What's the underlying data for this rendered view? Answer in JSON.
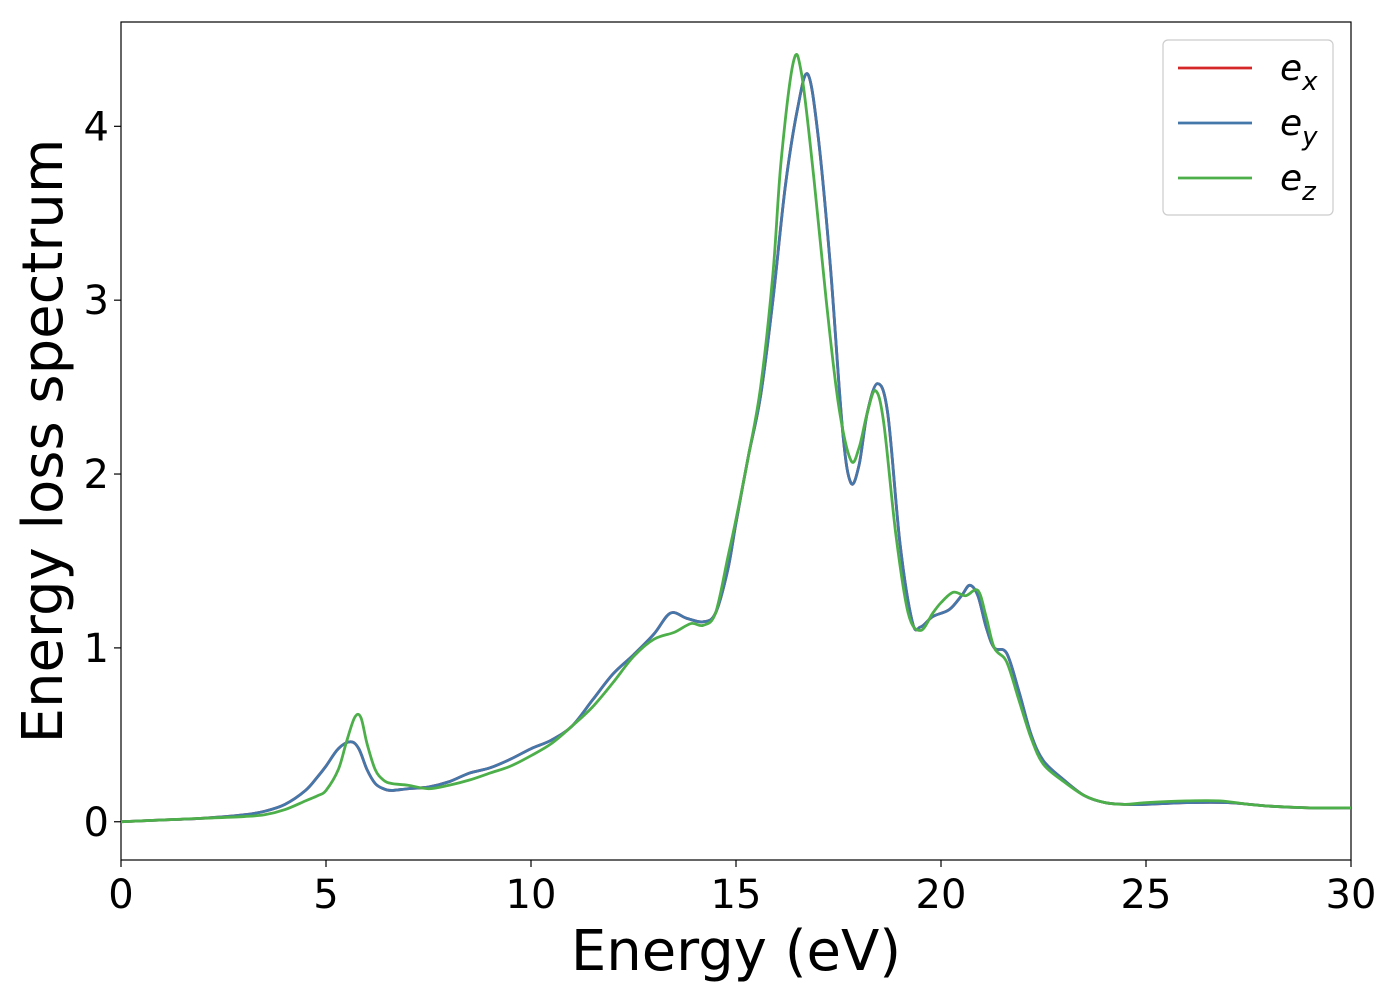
{
  "chart_data": {
    "type": "line",
    "title": "",
    "xlabel": "Energy (eV)",
    "ylabel": "Energy loss spectrum",
    "xlim": [
      0,
      30
    ],
    "ylim": [
      -0.22,
      4.6
    ],
    "xticks": [
      0,
      5,
      10,
      15,
      20,
      25,
      30
    ],
    "yticks": [
      0,
      1,
      2,
      3,
      4
    ],
    "grid": false,
    "legend_position": "top-right",
    "series": [
      {
        "name": "e_x",
        "label_base": "e",
        "label_sub": "x",
        "color": "#d62728",
        "x": [
          0,
          1,
          2,
          3,
          3.5,
          4,
          4.5,
          4.8,
          5,
          5.3,
          5.6,
          5.8,
          6,
          6.2,
          6.4,
          6.6,
          7,
          7.5,
          8,
          8.5,
          9,
          9.5,
          10,
          10.5,
          11,
          11.5,
          12,
          12.5,
          13,
          13.4,
          13.8,
          14.2,
          14.5,
          14.8,
          15,
          15.3,
          15.6,
          15.9,
          16.2,
          16.5,
          16.75,
          17,
          17.3,
          17.6,
          17.8,
          18,
          18.2,
          18.45,
          18.7,
          19,
          19.3,
          19.5,
          19.8,
          20.2,
          20.5,
          20.7,
          20.9,
          21.1,
          21.3,
          21.6,
          21.9,
          22.2,
          22.5,
          23,
          23.5,
          24,
          24.5,
          25,
          26,
          27,
          28,
          29,
          30
        ],
        "y": [
          0,
          0.01,
          0.02,
          0.04,
          0.06,
          0.1,
          0.18,
          0.26,
          0.32,
          0.42,
          0.46,
          0.42,
          0.3,
          0.22,
          0.19,
          0.18,
          0.19,
          0.2,
          0.23,
          0.28,
          0.31,
          0.36,
          0.42,
          0.47,
          0.55,
          0.7,
          0.85,
          0.96,
          1.08,
          1.2,
          1.17,
          1.15,
          1.2,
          1.45,
          1.72,
          2.1,
          2.45,
          3.0,
          3.65,
          4.1,
          4.3,
          3.95,
          3.2,
          2.25,
          1.95,
          2.05,
          2.35,
          2.52,
          2.35,
          1.6,
          1.15,
          1.12,
          1.18,
          1.22,
          1.3,
          1.36,
          1.3,
          1.12,
          1.0,
          0.97,
          0.75,
          0.5,
          0.35,
          0.24,
          0.15,
          0.11,
          0.1,
          0.1,
          0.11,
          0.11,
          0.09,
          0.08,
          0.08
        ]
      },
      {
        "name": "e_y",
        "label_base": "e",
        "label_sub": "y",
        "color": "#4477aa",
        "x": [
          0,
          1,
          2,
          3,
          3.5,
          4,
          4.5,
          4.8,
          5,
          5.3,
          5.6,
          5.8,
          6,
          6.2,
          6.4,
          6.6,
          7,
          7.5,
          8,
          8.5,
          9,
          9.5,
          10,
          10.5,
          11,
          11.5,
          12,
          12.5,
          13,
          13.4,
          13.8,
          14.2,
          14.5,
          14.8,
          15,
          15.3,
          15.6,
          15.9,
          16.2,
          16.5,
          16.75,
          17,
          17.3,
          17.6,
          17.8,
          18,
          18.2,
          18.45,
          18.7,
          19,
          19.3,
          19.5,
          19.8,
          20.2,
          20.5,
          20.7,
          20.9,
          21.1,
          21.3,
          21.6,
          21.9,
          22.2,
          22.5,
          23,
          23.5,
          24,
          24.5,
          25,
          26,
          27,
          28,
          29,
          30
        ],
        "y": [
          0,
          0.01,
          0.02,
          0.04,
          0.06,
          0.1,
          0.18,
          0.26,
          0.32,
          0.42,
          0.46,
          0.42,
          0.3,
          0.22,
          0.19,
          0.18,
          0.19,
          0.2,
          0.23,
          0.28,
          0.31,
          0.36,
          0.42,
          0.47,
          0.55,
          0.7,
          0.85,
          0.96,
          1.08,
          1.2,
          1.17,
          1.15,
          1.2,
          1.45,
          1.72,
          2.1,
          2.45,
          3.0,
          3.65,
          4.1,
          4.3,
          3.95,
          3.2,
          2.25,
          1.95,
          2.05,
          2.35,
          2.52,
          2.35,
          1.6,
          1.15,
          1.12,
          1.18,
          1.22,
          1.3,
          1.36,
          1.3,
          1.12,
          1.0,
          0.97,
          0.75,
          0.5,
          0.35,
          0.24,
          0.15,
          0.11,
          0.1,
          0.1,
          0.11,
          0.11,
          0.09,
          0.08,
          0.08
        ]
      },
      {
        "name": "e_z",
        "label_base": "e",
        "label_sub": "z",
        "color": "#4daf4a",
        "x": [
          0,
          1,
          2,
          3,
          3.5,
          4,
          4.5,
          4.8,
          5,
          5.3,
          5.5,
          5.7,
          5.85,
          6,
          6.2,
          6.4,
          6.6,
          7,
          7.5,
          8,
          8.5,
          9,
          9.5,
          10,
          10.5,
          11,
          11.5,
          12,
          12.5,
          13,
          13.5,
          13.9,
          14.2,
          14.5,
          14.8,
          15,
          15.3,
          15.6,
          15.9,
          16.1,
          16.4,
          16.6,
          16.9,
          17.2,
          17.5,
          17.8,
          18,
          18.2,
          18.4,
          18.6,
          18.9,
          19.2,
          19.5,
          19.8,
          20,
          20.3,
          20.6,
          20.9,
          21.1,
          21.3,
          21.6,
          21.9,
          22.2,
          22.5,
          23,
          23.5,
          24,
          24.5,
          25,
          26,
          26.8,
          27.5,
          28,
          29,
          30
        ],
        "y": [
          0,
          0.01,
          0.02,
          0.03,
          0.04,
          0.07,
          0.12,
          0.15,
          0.18,
          0.3,
          0.46,
          0.6,
          0.6,
          0.45,
          0.3,
          0.24,
          0.22,
          0.21,
          0.19,
          0.21,
          0.24,
          0.28,
          0.32,
          0.38,
          0.45,
          0.55,
          0.66,
          0.8,
          0.95,
          1.05,
          1.09,
          1.14,
          1.13,
          1.2,
          1.52,
          1.74,
          2.1,
          2.5,
          3.15,
          3.8,
          4.37,
          4.3,
          3.7,
          3.0,
          2.4,
          2.08,
          2.15,
          2.35,
          2.48,
          2.3,
          1.65,
          1.2,
          1.1,
          1.2,
          1.26,
          1.32,
          1.3,
          1.33,
          1.18,
          1.0,
          0.92,
          0.7,
          0.48,
          0.33,
          0.23,
          0.15,
          0.11,
          0.1,
          0.11,
          0.12,
          0.12,
          0.1,
          0.09,
          0.08,
          0.08
        ]
      }
    ]
  }
}
